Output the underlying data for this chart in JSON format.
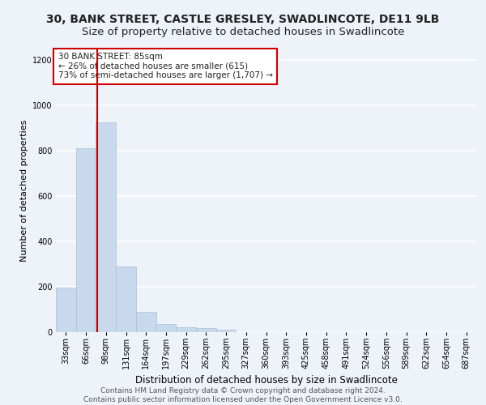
{
  "title": "30, BANK STREET, CASTLE GRESLEY, SWADLINCOTE, DE11 9LB",
  "subtitle": "Size of property relative to detached houses in Swadlincote",
  "xlabel": "Distribution of detached houses by size in Swadlincote",
  "ylabel": "Number of detached properties",
  "bar_color": "#c8d9ee",
  "bar_edge_color": "#aabfd8",
  "annotation_box_text": "30 BANK STREET: 85sqm\n← 26% of detached houses are smaller (615)\n73% of semi-detached houses are larger (1,707) →",
  "annotation_box_color": "#ffffff",
  "annotation_box_edge_color": "#cc0000",
  "vline_x": 85,
  "vline_color": "#cc0000",
  "categories": [
    "33sqm",
    "66sqm",
    "98sqm",
    "131sqm",
    "164sqm",
    "197sqm",
    "229sqm",
    "262sqm",
    "295sqm",
    "327sqm",
    "360sqm",
    "393sqm",
    "425sqm",
    "458sqm",
    "491sqm",
    "524sqm",
    "556sqm",
    "589sqm",
    "622sqm",
    "654sqm",
    "687sqm"
  ],
  "bin_edges": [
    16.5,
    49.5,
    82.5,
    115.5,
    148.5,
    181.5,
    214.5,
    247.5,
    280.5,
    313.5,
    346.5,
    379.5,
    412.5,
    445.5,
    478.5,
    511.5,
    544.5,
    577.5,
    610.5,
    643.5,
    676.5,
    709.5
  ],
  "values": [
    195,
    810,
    925,
    290,
    88,
    35,
    22,
    17,
    12,
    0,
    0,
    0,
    0,
    0,
    0,
    0,
    0,
    0,
    0,
    0,
    0
  ],
  "ylim": [
    0,
    1250
  ],
  "yticks": [
    0,
    200,
    400,
    600,
    800,
    1000,
    1200
  ],
  "background_color": "#eef2f9",
  "grid_color": "#ffffff",
  "footer_line1": "Contains HM Land Registry data © Crown copyright and database right 2024.",
  "footer_line2": "Contains public sector information licensed under the Open Government Licence v3.0.",
  "title_fontsize": 10,
  "subtitle_fontsize": 9.5,
  "xlabel_fontsize": 8.5,
  "ylabel_fontsize": 8,
  "tick_fontsize": 7,
  "footer_fontsize": 6.5,
  "ann_fontsize": 7.5
}
